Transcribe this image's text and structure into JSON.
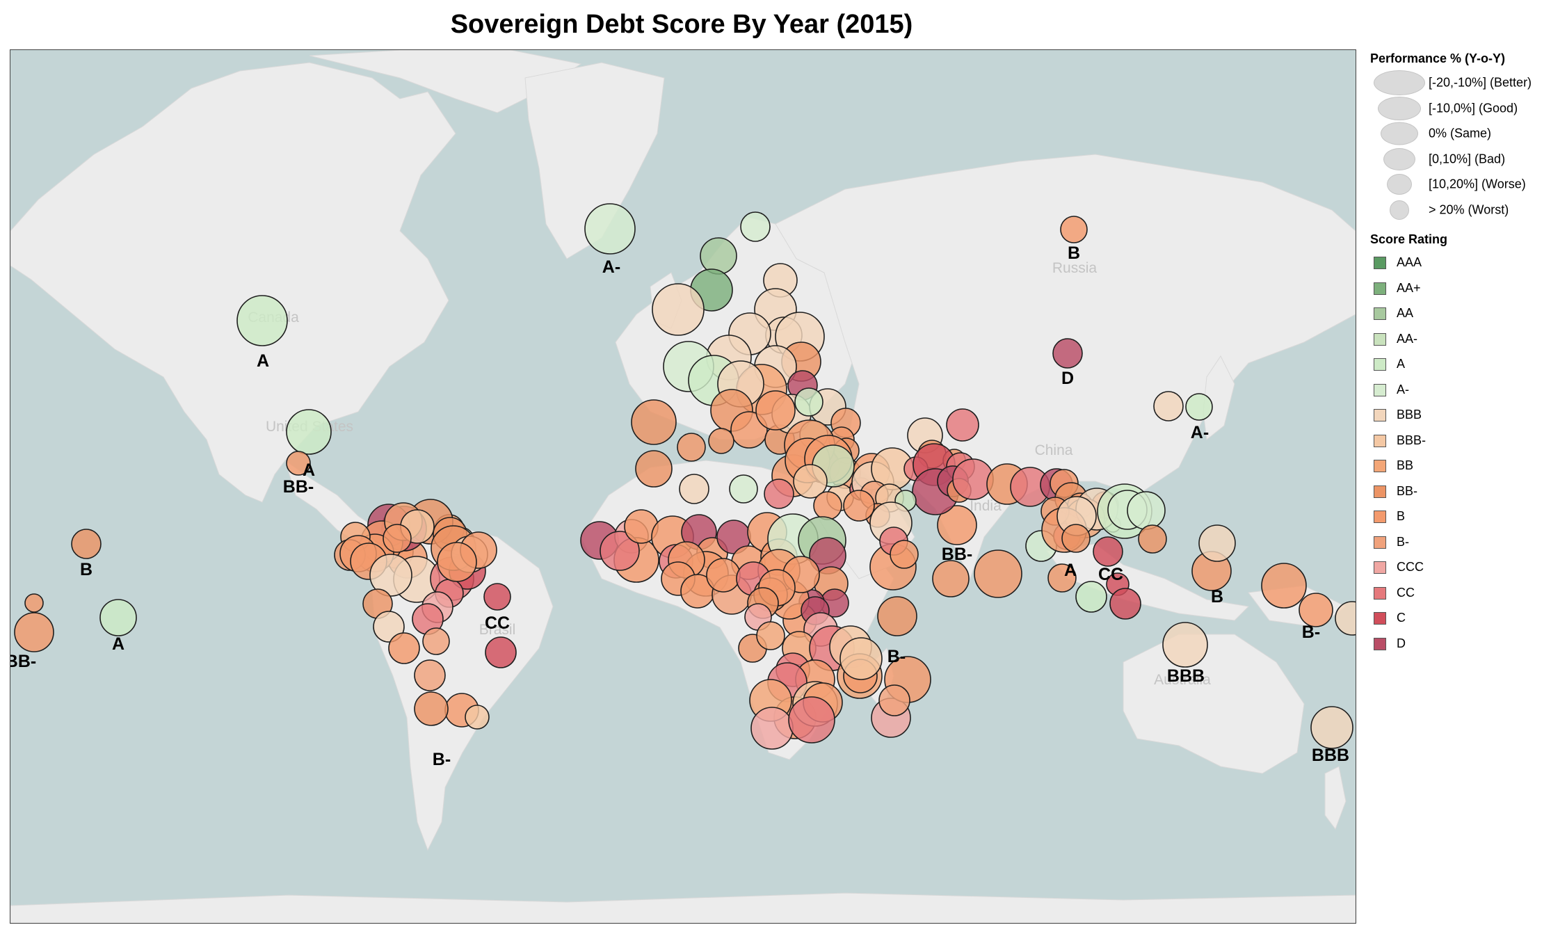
{
  "title": "Sovereign Debt Score By Year (2015)",
  "map": {
    "ocean_color": "#c4d5d6",
    "land_color": "#ececec",
    "place_labels": [
      "Canada",
      "United States",
      "Brasil",
      "Russia",
      "China",
      "India",
      "Australia"
    ]
  },
  "legend": {
    "performance_title": "Performance % (Y-o-Y)",
    "performance": [
      {
        "label": "[-20,-10%] (Better)"
      },
      {
        "label": "[-10,0%] (Good)"
      },
      {
        "label": "0% (Same)"
      },
      {
        "label": "[0,10%] (Bad)"
      },
      {
        "label": "[10,20%] (Worse)"
      },
      {
        "label": "> 20% (Worst)"
      }
    ],
    "score_title": "Score Rating",
    "scores": [
      {
        "label": "AAA",
        "color": "#5a9a62"
      },
      {
        "label": "AA+",
        "color": "#7db07c"
      },
      {
        "label": "AA",
        "color": "#a8c99f"
      },
      {
        "label": "AA-",
        "color": "#c9e2bd"
      },
      {
        "label": "A",
        "color": "#cdeac6"
      },
      {
        "label": "A-",
        "color": "#d6ecd0"
      },
      {
        "label": "BBB",
        "color": "#f2d6bc"
      },
      {
        "label": "BBB-",
        "color": "#f4c8a4"
      },
      {
        "label": "BB",
        "color": "#f3a677"
      },
      {
        "label": "BB-",
        "color": "#ec9465"
      },
      {
        "label": "B",
        "color": "#f39a6d"
      },
      {
        "label": "B-",
        "color": "#f0a27c"
      },
      {
        "label": "CCC",
        "color": "#f0a7a3"
      },
      {
        "label": "CC",
        "color": "#e5797c"
      },
      {
        "label": "C",
        "color": "#d14e5b"
      },
      {
        "label": "D",
        "color": "#b94d66"
      }
    ]
  },
  "map_labels": [
    "A",
    "A",
    "A-",
    "B",
    "D",
    "A-",
    "BB-",
    "B",
    "BB-",
    "A",
    "CC",
    "B-",
    "BB-",
    "A",
    "CC",
    "B",
    "B-",
    "B-",
    "BBB",
    "BBB"
  ]
}
